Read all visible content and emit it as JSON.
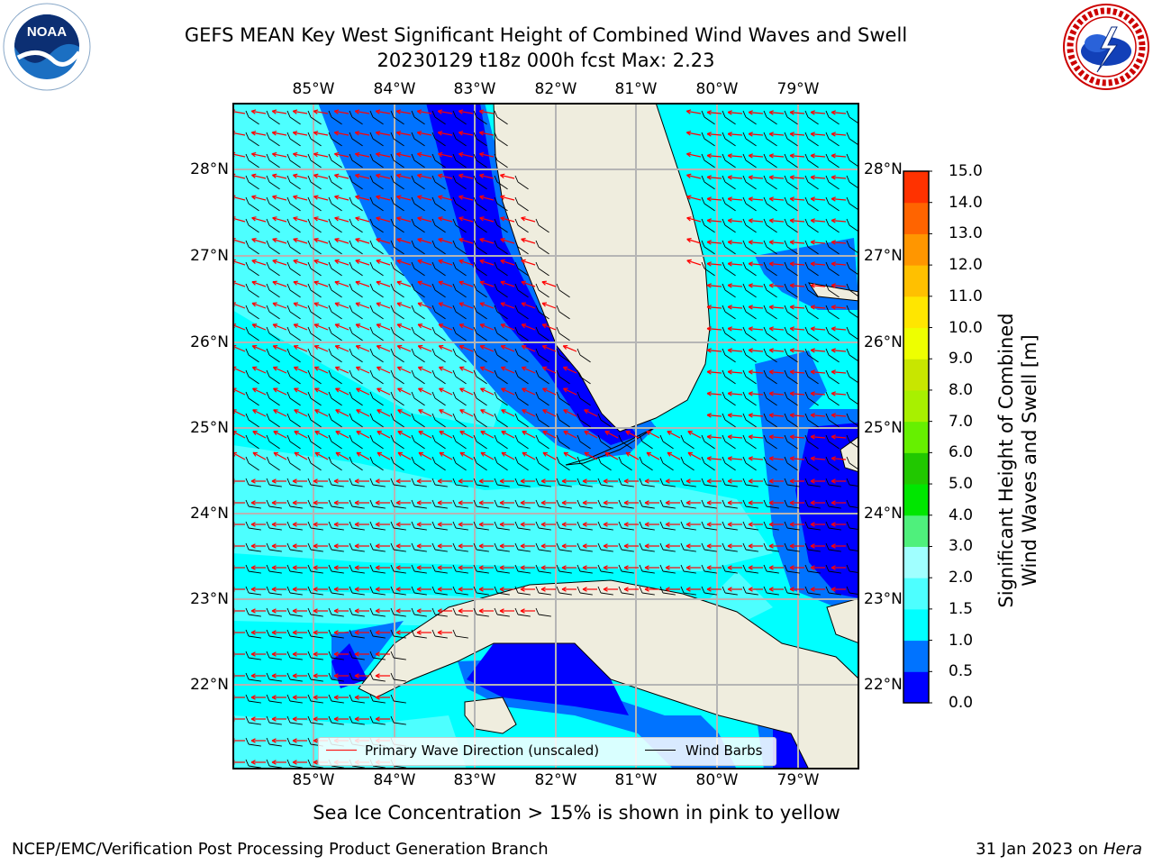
{
  "title": {
    "line1": "GEFS MEAN Key West Significant Height of Combined Wind Waves and Swell",
    "line2": "20230129 t18z 000h fcst   Max: 2.23"
  },
  "logos": {
    "left": "NOAA",
    "right": "National Weather Service"
  },
  "map": {
    "lon_ticks": [
      "85°W",
      "84°W",
      "83°W",
      "82°W",
      "81°W",
      "80°W",
      "79°W"
    ],
    "lat_ticks": [
      "28°N",
      "27°N",
      "26°N",
      "25°N",
      "24°N",
      "23°N",
      "22°N"
    ],
    "lon_range": [
      -86.0,
      -78.3
    ],
    "lat_range": [
      21.1,
      28.8
    ],
    "max_value": 2.23,
    "colors": {
      "land": "#efedde",
      "cyan": "#00ffff",
      "cyan_light": "#4dffff",
      "blue_mid": "#0073ff",
      "blue_deep": "#0000ff",
      "grid": "#b5b5b5",
      "wave_arrow": "#ff0000",
      "wind_barb": "#000000"
    }
  },
  "legend": {
    "primary_wave": "Primary Wave Direction (unscaled)",
    "wind_barbs": "Wind Barbs"
  },
  "colorbar": {
    "label_line1": "Significant Height of Combined",
    "label_line2": "Wind Waves and Swell [m]",
    "ticks": [
      "0.0",
      "0.5",
      "1.0",
      "1.5",
      "2.0",
      "3.0",
      "4.0",
      "5.0",
      "6.0",
      "7.0",
      "8.0",
      "9.0",
      "10.0",
      "11.0",
      "12.0",
      "13.0",
      "14.0",
      "15.0"
    ],
    "colors": [
      "#0000ff",
      "#0073ff",
      "#00ffff",
      "#4dffff",
      "#a0ffff",
      "#4ff07c",
      "#00e600",
      "#21c800",
      "#66f000",
      "#a8f000",
      "#c8e600",
      "#eeff00",
      "#ffe600",
      "#ffc000",
      "#ff9600",
      "#ff6400",
      "#ff3200",
      "#ff0000"
    ]
  },
  "footer": {
    "ice_note": "Sea Ice Concentration > 15% is shown in pink to yellow",
    "left": "NCEP/EMC/Verification Post Processing Product Generation Branch",
    "right_date": "31 Jan 2023 on",
    "right_host": "Hera"
  }
}
